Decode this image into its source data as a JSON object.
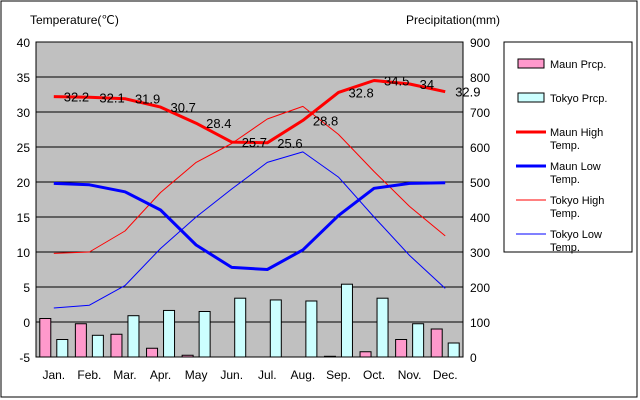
{
  "chart_data": {
    "type": "bar+line",
    "categories": [
      "Jan.",
      "Feb.",
      "Mar.",
      "Apr.",
      "May",
      "Jun.",
      "Jul.",
      "Aug.",
      "Sep.",
      "Oct.",
      "Nov.",
      "Dec."
    ],
    "left_axis": {
      "label": "Temperature(℃)",
      "ylim": [
        -5,
        40
      ],
      "ticks": [
        "-5",
        "0",
        "5",
        "10",
        "15",
        "20",
        "25",
        "30",
        "35",
        "40"
      ]
    },
    "right_axis": {
      "label": "Precipitation(mm)",
      "ylim": [
        0,
        900
      ],
      "ticks": [
        "0",
        "100",
        "200",
        "300",
        "400",
        "500",
        "600",
        "700",
        "800",
        "900"
      ]
    },
    "grid": true,
    "legend_position": "right",
    "series": [
      {
        "name": "Maun Prcp.",
        "kind": "bar",
        "axis": "right",
        "color": "#ff99cc",
        "values": [
          110,
          95,
          65,
          25,
          5,
          0,
          0,
          0,
          2,
          15,
          50,
          80
        ]
      },
      {
        "name": "Tokyo Prcp.",
        "kind": "bar",
        "axis": "right",
        "color": "#ccffff",
        "values": [
          50,
          62,
          118,
          133,
          130,
          168,
          163,
          160,
          208,
          168,
          95,
          40
        ]
      },
      {
        "name": "Maun High Temp.",
        "kind": "line",
        "axis": "left",
        "color": "#ff0000",
        "width": 3,
        "values": [
          32.2,
          32.1,
          31.9,
          30.7,
          28.4,
          25.7,
          25.6,
          28.8,
          32.8,
          34.5,
          34,
          32.9
        ]
      },
      {
        "name": "Maun Low Temp.",
        "kind": "line",
        "axis": "left",
        "color": "#0000ff",
        "width": 3,
        "values": [
          19.8,
          19.6,
          18.6,
          16.0,
          11.0,
          7.8,
          7.5,
          10.3,
          15.2,
          19.1,
          19.8,
          19.9
        ]
      },
      {
        "name": "Tokyo High Temp.",
        "kind": "line",
        "axis": "left",
        "color": "#ff0000",
        "width": 1,
        "values": [
          9.8,
          10.0,
          13.0,
          18.5,
          22.8,
          25.5,
          29.0,
          30.8,
          26.8,
          21.5,
          16.5,
          12.3
        ]
      },
      {
        "name": "Tokyo Low Temp.",
        "kind": "line",
        "axis": "left",
        "color": "#0000ff",
        "width": 1,
        "values": [
          2.0,
          2.4,
          5.2,
          10.5,
          15.0,
          19.0,
          22.8,
          24.3,
          20.7,
          15.0,
          9.5,
          4.8
        ]
      }
    ],
    "data_labels": {
      "series": "Maun High Temp.",
      "values": [
        "32.2",
        "32.1",
        "31.9",
        "30.7",
        "28.4",
        "25.7",
        "25.6",
        "28.8",
        "32.8",
        "34.5",
        "34",
        "32.9"
      ]
    },
    "legend": [
      {
        "label": "Maun Prcp.",
        "kind": "bar",
        "color": "#ff99cc"
      },
      {
        "label": "Tokyo Prcp.",
        "kind": "bar",
        "color": "#ccffff"
      },
      {
        "label": "Maun High",
        "label2": "Temp.",
        "kind": "thick",
        "color": "#ff0000"
      },
      {
        "label": "Maun Low",
        "label2": "Temp.",
        "kind": "thick",
        "color": "#0000ff"
      },
      {
        "label": "Tokyo High",
        "label2": "Temp.",
        "kind": "thin",
        "color": "#ff0000"
      },
      {
        "label": "Tokyo Low",
        "label2": "Temp.",
        "kind": "thin",
        "color": "#0000ff"
      }
    ],
    "plot_background": "#c0c0c0"
  }
}
